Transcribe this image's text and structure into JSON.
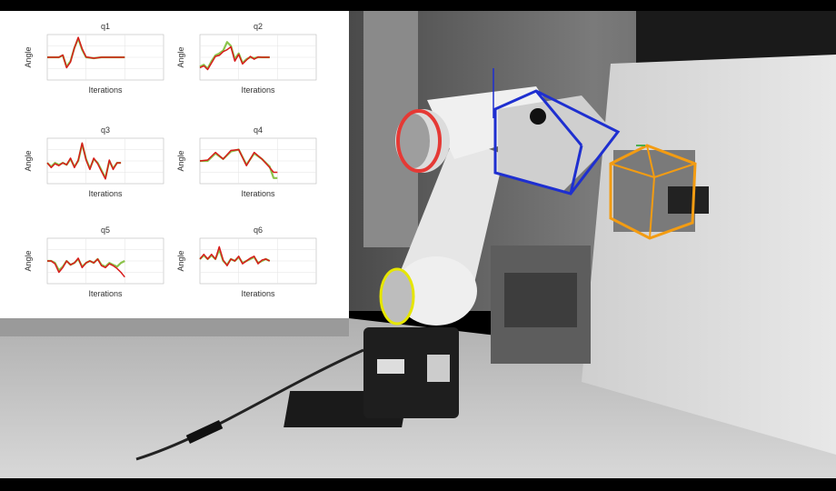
{
  "colors": {
    "actual_line": "#d81b1b",
    "reference_line": "#8bc34a",
    "red_ring": "#e53935",
    "blue_box": "#1e2fd0",
    "orange_box": "#f39c12",
    "yellow_ring": "#e6e600"
  },
  "chart_data": [
    {
      "type": "line",
      "title": "q1",
      "xlabel": "Iterations",
      "ylabel": "Angle",
      "xlim": [
        0,
        300
      ],
      "ylim": [
        -1.2,
        1.2
      ],
      "grid": true,
      "series": [
        {
          "color": "#8bc34a",
          "x": [
            0,
            20,
            30,
            40,
            50,
            60,
            70,
            80,
            90,
            100,
            120,
            140,
            160,
            180,
            200
          ],
          "y": [
            0,
            0,
            0,
            0.1,
            -0.5,
            -0.2,
            0.5,
            1.0,
            0.4,
            0,
            -0.05,
            0,
            0,
            0,
            0
          ]
        },
        {
          "color": "#d81b1b",
          "x": [
            0,
            20,
            30,
            40,
            50,
            60,
            70,
            80,
            90,
            100,
            120,
            140,
            160,
            180,
            200
          ],
          "y": [
            0,
            0,
            0,
            0.12,
            -0.55,
            -0.25,
            0.5,
            1.05,
            0.45,
            0.02,
            -0.05,
            0,
            0,
            0,
            0
          ]
        }
      ]
    },
    {
      "type": "line",
      "title": "q2",
      "xlabel": "Iterations",
      "ylabel": "Angle",
      "xlim": [
        0,
        300
      ],
      "ylim": [
        -1.2,
        1.2
      ],
      "grid": true,
      "series": [
        {
          "color": "#8bc34a",
          "x": [
            0,
            10,
            20,
            30,
            40,
            50,
            60,
            70,
            80,
            90,
            100,
            110,
            120,
            130,
            140,
            150,
            160,
            170,
            180
          ],
          "y": [
            -0.5,
            -0.4,
            -0.6,
            -0.2,
            0.1,
            0.2,
            0.35,
            0.8,
            0.6,
            -0.1,
            0.2,
            -0.3,
            -0.1,
            0,
            -0.05,
            0,
            0,
            0,
            0
          ]
        },
        {
          "color": "#d81b1b",
          "x": [
            0,
            10,
            20,
            30,
            40,
            50,
            60,
            70,
            80,
            90,
            100,
            110,
            120,
            130,
            140,
            150,
            160,
            170,
            180
          ],
          "y": [
            -0.55,
            -0.45,
            -0.65,
            -0.3,
            0.05,
            0.1,
            0.3,
            0.4,
            0.55,
            -0.2,
            0.15,
            -0.35,
            -0.15,
            0.05,
            -0.1,
            0.02,
            0,
            0,
            0
          ]
        }
      ]
    },
    {
      "type": "line",
      "title": "q3",
      "xlabel": "Iterations",
      "ylabel": "Angle",
      "xlim": [
        0,
        300
      ],
      "ylim": [
        -1.2,
        1.2
      ],
      "grid": true,
      "series": [
        {
          "color": "#8bc34a",
          "x": [
            0,
            10,
            20,
            30,
            40,
            50,
            60,
            70,
            80,
            90,
            100,
            110,
            120,
            130,
            140,
            150,
            160,
            170,
            180,
            190
          ],
          "y": [
            -0.1,
            -0.3,
            -0.1,
            -0.2,
            -0.1,
            -0.2,
            0.1,
            -0.3,
            0,
            0.9,
            0.1,
            -0.4,
            0.1,
            -0.1,
            -0.5,
            -0.9,
            0,
            -0.4,
            -0.1,
            -0.1
          ]
        },
        {
          "color": "#d81b1b",
          "x": [
            0,
            10,
            20,
            30,
            40,
            50,
            60,
            70,
            80,
            90,
            100,
            110,
            120,
            130,
            140,
            150,
            160,
            170,
            180,
            190
          ],
          "y": [
            -0.1,
            -0.35,
            -0.15,
            -0.25,
            -0.1,
            -0.2,
            0.15,
            -0.35,
            0.05,
            0.95,
            0.05,
            -0.45,
            0.15,
            -0.15,
            -0.55,
            -0.95,
            0.05,
            -0.45,
            -0.1,
            -0.1
          ]
        }
      ]
    },
    {
      "type": "line",
      "title": "q4",
      "xlabel": "Iterations",
      "ylabel": "Angle",
      "xlim": [
        0,
        300
      ],
      "ylim": [
        -1.2,
        1.2
      ],
      "grid": true,
      "series": [
        {
          "color": "#8bc34a",
          "x": [
            0,
            20,
            40,
            60,
            80,
            100,
            120,
            140,
            160,
            180,
            190,
            200
          ],
          "y": [
            0,
            0,
            0.4,
            0.1,
            0.5,
            0.6,
            -0.2,
            0.4,
            0.1,
            -0.3,
            -0.9,
            -0.9
          ]
        },
        {
          "color": "#d81b1b",
          "x": [
            0,
            20,
            40,
            60,
            80,
            100,
            120,
            140,
            160,
            180,
            190,
            200
          ],
          "y": [
            0,
            0.05,
            0.45,
            0.1,
            0.55,
            0.6,
            -0.25,
            0.45,
            0.1,
            -0.35,
            -0.6,
            -0.6
          ]
        }
      ]
    },
    {
      "type": "line",
      "title": "q5",
      "xlabel": "Iterations",
      "ylabel": "Angle",
      "xlim": [
        0,
        300
      ],
      "ylim": [
        -1.2,
        1.2
      ],
      "grid": true,
      "series": [
        {
          "color": "#8bc34a",
          "x": [
            0,
            10,
            20,
            30,
            40,
            50,
            60,
            70,
            80,
            90,
            100,
            110,
            120,
            130,
            140,
            150,
            160,
            170,
            180,
            190,
            200
          ],
          "y": [
            0,
            0,
            -0.1,
            -0.5,
            -0.3,
            0,
            -0.2,
            -0.1,
            0.1,
            -0.3,
            -0.1,
            0,
            -0.1,
            0.1,
            -0.2,
            -0.3,
            -0.1,
            -0.2,
            -0.3,
            -0.1,
            0
          ]
        },
        {
          "color": "#d81b1b",
          "x": [
            0,
            10,
            20,
            30,
            40,
            50,
            60,
            70,
            80,
            90,
            100,
            110,
            120,
            130,
            140,
            150,
            160,
            170,
            180,
            190,
            200
          ],
          "y": [
            0,
            0,
            -0.15,
            -0.6,
            -0.35,
            0,
            -0.2,
            -0.1,
            0.15,
            -0.35,
            -0.1,
            0,
            -0.1,
            0.1,
            -0.25,
            -0.35,
            -0.15,
            -0.25,
            -0.4,
            -0.6,
            -0.85
          ]
        }
      ]
    },
    {
      "type": "line",
      "title": "q6",
      "xlabel": "Iterations",
      "ylabel": "Angle",
      "xlim": [
        0,
        300
      ],
      "ylim": [
        -1.2,
        1.2
      ],
      "grid": true,
      "series": [
        {
          "color": "#8bc34a",
          "x": [
            0,
            10,
            20,
            30,
            40,
            50,
            60,
            70,
            80,
            90,
            100,
            110,
            120,
            130,
            140,
            150,
            160,
            170,
            180
          ],
          "y": [
            0.1,
            0.3,
            0.1,
            0.3,
            0.1,
            0.6,
            0,
            -0.2,
            0.1,
            0,
            0.2,
            -0.1,
            0,
            0.1,
            0.2,
            -0.1,
            0,
            0.1,
            0
          ]
        },
        {
          "color": "#d81b1b",
          "x": [
            0,
            10,
            20,
            30,
            40,
            50,
            60,
            70,
            80,
            90,
            100,
            110,
            120,
            130,
            140,
            150,
            160,
            170,
            180
          ],
          "y": [
            0.1,
            0.35,
            0.1,
            0.35,
            0.1,
            0.75,
            0.05,
            -0.25,
            0.1,
            0,
            0.25,
            -0.15,
            0,
            0.15,
            0.25,
            -0.15,
            0.05,
            0.1,
            0
          ]
        }
      ]
    }
  ]
}
